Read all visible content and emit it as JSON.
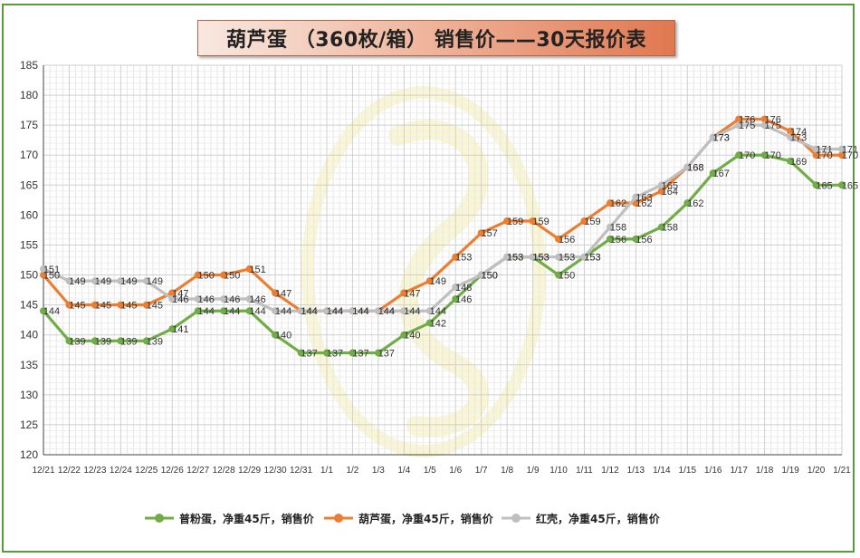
{
  "page": {
    "title": "葫芦蛋 （360枚/箱） 销售价——30天报价表"
  },
  "chart_data": {
    "type": "line",
    "title": "葫芦蛋 （360枚/箱） 销售价——30天报价表",
    "xlabel": "",
    "ylabel": "",
    "ylim": [
      120,
      185
    ],
    "yticks": [
      120,
      125,
      130,
      135,
      140,
      145,
      150,
      155,
      160,
      165,
      170,
      175,
      180,
      185
    ],
    "grid": true,
    "legend_position": "bottom",
    "categories": [
      "12/21",
      "12/22",
      "12/23",
      "12/24",
      "12/25",
      "12/26",
      "12/27",
      "12/28",
      "12/29",
      "12/30",
      "12/31",
      "1/1",
      "1/2",
      "1/3",
      "1/4",
      "1/5",
      "1/6",
      "1/7",
      "1/8",
      "1/9",
      "1/10",
      "1/11",
      "1/12",
      "1/13",
      "1/14",
      "1/15",
      "1/16",
      "1/17",
      "1/18",
      "1/19",
      "1/20",
      "1/21"
    ],
    "series": [
      {
        "name": "普粉蛋，净重45斤，销售价",
        "color": "#70ad47",
        "values": [
          144,
          139,
          139,
          139,
          139,
          141,
          144,
          144,
          144,
          140,
          137,
          137,
          137,
          137,
          140,
          142,
          146,
          150,
          153,
          153,
          150,
          153,
          156,
          156,
          158,
          162,
          167,
          170,
          170,
          169,
          165,
          165
        ]
      },
      {
        "name": "葫芦蛋，净重45斤，销售价",
        "color": "#ed7d31",
        "values": [
          150,
          145,
          145,
          145,
          145,
          147,
          150,
          150,
          151,
          147,
          144,
          144,
          144,
          144,
          147,
          149,
          153,
          157,
          159,
          159,
          156,
          159,
          162,
          162,
          164,
          168,
          173,
          176,
          176,
          174,
          170,
          170
        ]
      },
      {
        "name": "红壳，净重45斤，销售价",
        "color": "#bfbfbf",
        "values": [
          151,
          149,
          149,
          149,
          149,
          146,
          146,
          146,
          146,
          144,
          144,
          144,
          144,
          144,
          144,
          144,
          148,
          150,
          153,
          153,
          153,
          153,
          158,
          163,
          165,
          168,
          173,
          175,
          175,
          173,
          171,
          171
        ]
      }
    ]
  }
}
